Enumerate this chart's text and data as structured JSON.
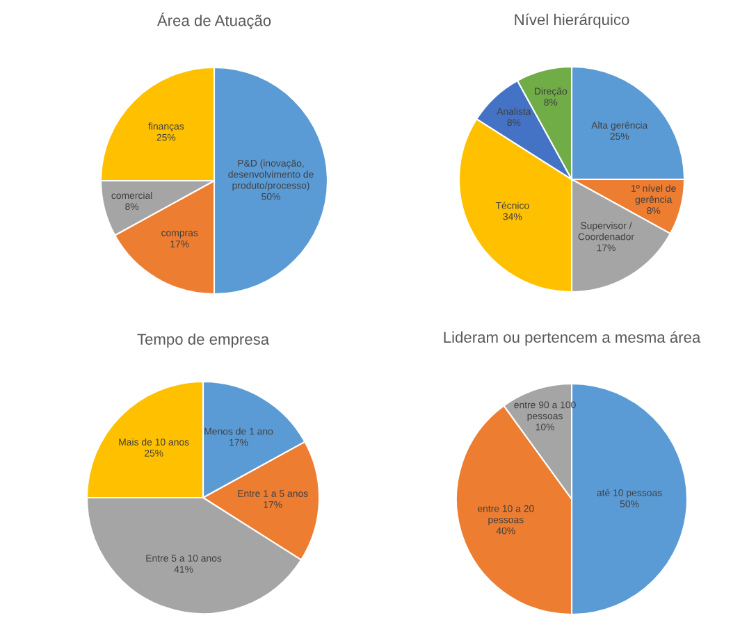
{
  "chart_data": [
    {
      "type": "pie",
      "title": "Área de Atuação",
      "categories": [
        "P&D (inovação,\ndesenvolvimento de\nproduto/processo)",
        "compras",
        "comercial",
        "finanças"
      ],
      "values": [
        50,
        17,
        8,
        25
      ],
      "value_labels": [
        "50%",
        "17%",
        "8%",
        "25%"
      ],
      "colors": [
        "#5b9bd5",
        "#ed7d31",
        "#a5a5a5",
        "#ffc000"
      ]
    },
    {
      "type": "pie",
      "title": "Nível hierárquico",
      "categories": [
        "Alta gerência",
        "1º nível de\ngerência",
        "Supervisor /\nCoordenador",
        "Técnico",
        "Analista",
        "Direção"
      ],
      "values": [
        25,
        8,
        17,
        34,
        8,
        8
      ],
      "value_labels": [
        "25%",
        "8%",
        "17%",
        "34%",
        "8%",
        "8%"
      ],
      "colors": [
        "#5b9bd5",
        "#ed7d31",
        "#a5a5a5",
        "#ffc000",
        "#4472c4",
        "#70ad47"
      ]
    },
    {
      "type": "pie",
      "title": "Tempo de empresa",
      "categories": [
        "Menos de 1 ano",
        "Entre 1 a 5 anos",
        "Entre 5 a 10 anos",
        "Mais de 10 anos"
      ],
      "values": [
        17,
        17,
        41,
        25
      ],
      "value_labels": [
        "17%",
        "17%",
        "41%",
        "25%"
      ],
      "colors": [
        "#5b9bd5",
        "#ed7d31",
        "#a5a5a5",
        "#ffc000"
      ]
    },
    {
      "type": "pie",
      "title": "Lideram ou pertencem a mesma área",
      "categories": [
        "até 10 pessoas",
        "entre 10 a 20\npessoas",
        "entre 90 a 100\npessoas"
      ],
      "values": [
        50,
        40,
        10
      ],
      "value_labels": [
        "50%",
        "40%",
        "10%"
      ],
      "colors": [
        "#5b9bd5",
        "#ed7d31",
        "#a5a5a5"
      ]
    }
  ]
}
